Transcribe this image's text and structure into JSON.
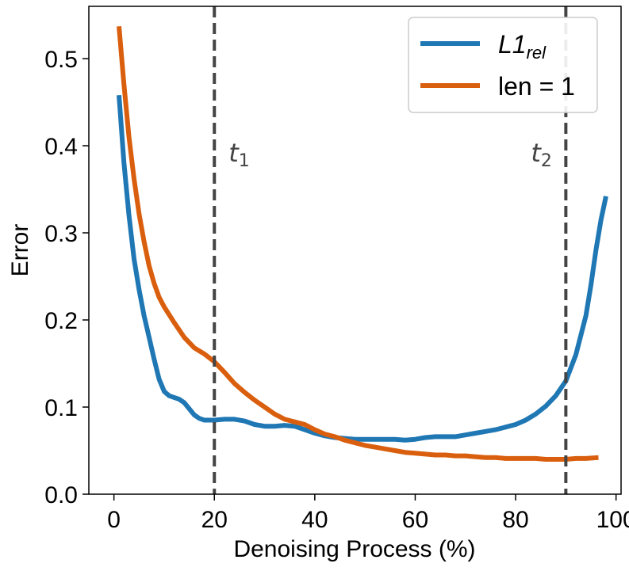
{
  "chart_data": {
    "type": "line",
    "xlabel": "Denoising Process (%)",
    "ylabel": "Error",
    "xlim": [
      -5,
      101
    ],
    "ylim": [
      0,
      0.56
    ],
    "xticks": [
      0,
      20,
      40,
      60,
      80,
      100
    ],
    "xtick_labels": [
      "0",
      "20",
      "40",
      "60",
      "80",
      "100"
    ],
    "yticks": [
      0.0,
      0.1,
      0.2,
      0.3,
      0.4,
      0.5
    ],
    "ytick_labels": [
      "0.0",
      "0.1",
      "0.2",
      "0.3",
      "0.4",
      "0.5"
    ],
    "grid": false,
    "legend_position": "top-right",
    "series": [
      {
        "name": "L1",
        "name_subscript": "rel",
        "color": "#1f77b4",
        "x": [
          1,
          2,
          3,
          4,
          5,
          6,
          7,
          8,
          9,
          10,
          11,
          12,
          13,
          14,
          15,
          16,
          17,
          18,
          19,
          20,
          22,
          24,
          26,
          28,
          30,
          32,
          34,
          36,
          38,
          40,
          42,
          44,
          46,
          48,
          50,
          52,
          54,
          56,
          58,
          60,
          62,
          64,
          66,
          68,
          70,
          72,
          74,
          76,
          78,
          80,
          82,
          84,
          86,
          88,
          90,
          92,
          94,
          95,
          96,
          97,
          98
        ],
        "y": [
          0.458,
          0.38,
          0.32,
          0.27,
          0.235,
          0.205,
          0.18,
          0.155,
          0.132,
          0.118,
          0.113,
          0.111,
          0.109,
          0.105,
          0.098,
          0.091,
          0.087,
          0.085,
          0.085,
          0.085,
          0.086,
          0.086,
          0.084,
          0.08,
          0.078,
          0.078,
          0.079,
          0.078,
          0.074,
          0.07,
          0.067,
          0.065,
          0.064,
          0.063,
          0.063,
          0.063,
          0.063,
          0.063,
          0.062,
          0.063,
          0.065,
          0.066,
          0.066,
          0.066,
          0.068,
          0.07,
          0.072,
          0.074,
          0.077,
          0.08,
          0.085,
          0.092,
          0.101,
          0.113,
          0.13,
          0.16,
          0.205,
          0.24,
          0.28,
          0.315,
          0.342
        ]
      },
      {
        "name": "len = 1",
        "color": "#d95f0e",
        "x": [
          1,
          2,
          3,
          4,
          5,
          6,
          7,
          8,
          9,
          10,
          12,
          14,
          16,
          18,
          20,
          22,
          24,
          26,
          28,
          30,
          32,
          34,
          36,
          38,
          40,
          42,
          44,
          46,
          48,
          50,
          52,
          54,
          56,
          58,
          60,
          62,
          64,
          66,
          68,
          70,
          72,
          74,
          76,
          78,
          80,
          82,
          84,
          86,
          88,
          90,
          92,
          94,
          96.5
        ],
        "y": [
          0.537,
          0.47,
          0.41,
          0.362,
          0.322,
          0.29,
          0.262,
          0.242,
          0.226,
          0.215,
          0.197,
          0.18,
          0.168,
          0.161,
          0.152,
          0.14,
          0.127,
          0.117,
          0.108,
          0.1,
          0.092,
          0.086,
          0.083,
          0.08,
          0.074,
          0.069,
          0.066,
          0.062,
          0.059,
          0.056,
          0.054,
          0.052,
          0.05,
          0.048,
          0.047,
          0.046,
          0.045,
          0.045,
          0.044,
          0.044,
          0.043,
          0.042,
          0.042,
          0.041,
          0.041,
          0.041,
          0.041,
          0.04,
          0.04,
          0.04,
          0.041,
          0.041,
          0.042
        ]
      }
    ],
    "vlines": [
      {
        "x": 20,
        "label": "t",
        "label_subscript": "1",
        "color": "#444444",
        "style": "dashed"
      },
      {
        "x": 90,
        "label": "t",
        "label_subscript": "2",
        "color": "#444444",
        "style": "dashed"
      }
    ]
  }
}
